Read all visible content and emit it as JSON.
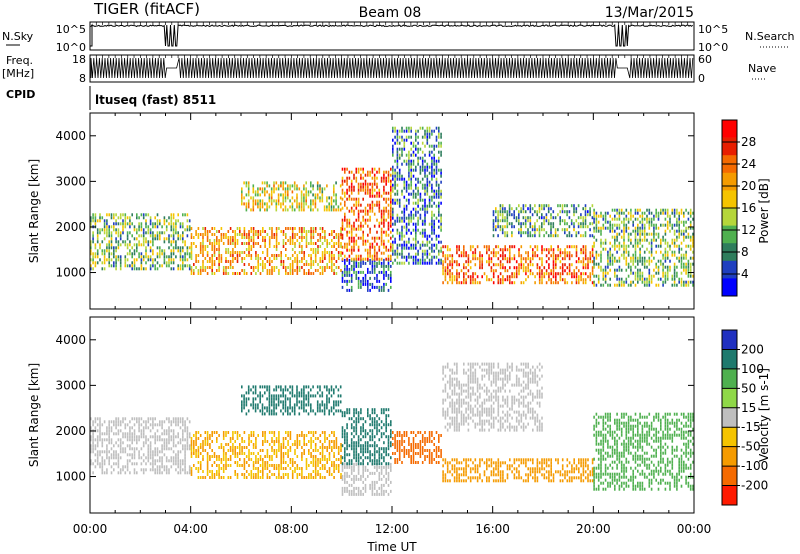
{
  "header": {
    "radar": "TIGER (fitACF)",
    "beam": "Beam 08",
    "date": "13/Mar/2015"
  },
  "strips": {
    "nsky_label": "N.Sky",
    "nsky_ticks": [
      "10^5",
      "10^0"
    ],
    "nsearch_label": "N.Search",
    "nsearch_ticks": [
      "10^5",
      "10^0"
    ],
    "freq_label": "Freq.",
    "freq_unit": "[MHz]",
    "freq_ticks": [
      "18",
      "8"
    ],
    "nave_label": "Nave",
    "nave_ticks": [
      "60",
      "0"
    ],
    "cpid_label": "CPID",
    "cpid_value": "ltuseq (fast) 8511"
  },
  "chart_data": [
    {
      "type": "heatmap",
      "panel": "power",
      "xlabel": "",
      "ylabel": "Slant Range [km]",
      "xlim": [
        0,
        24
      ],
      "ylim": [
        200,
        4500
      ],
      "y_ticks": [
        1000,
        2000,
        3000,
        4000
      ],
      "colorbar": {
        "label": "Power [dB]",
        "ticks": [
          4,
          8,
          12,
          16,
          20,
          24,
          28
        ],
        "range": [
          0,
          32
        ],
        "colors": [
          "#0000ff",
          "#1f3fbf",
          "#2e7d5c",
          "#4fb04f",
          "#b5d63a",
          "#f5c400",
          "#f59b00",
          "#f56a00",
          "#e81e00",
          "#ff0000"
        ]
      },
      "regions": [
        {
          "t": [
            0.0,
            4.0
          ],
          "r": [
            1100,
            2300
          ],
          "value": 12
        },
        {
          "t": [
            4.0,
            10.0
          ],
          "r": [
            1000,
            2000
          ],
          "value": 20
        },
        {
          "t": [
            6.0,
            10.0
          ],
          "r": [
            2400,
            3000
          ],
          "value": 16
        },
        {
          "t": [
            10.0,
            12.0
          ],
          "r": [
            600,
            1300
          ],
          "value": 6
        },
        {
          "t": [
            10.0,
            12.0
          ],
          "r": [
            1300,
            3300
          ],
          "value": 24
        },
        {
          "t": [
            12.0,
            14.0
          ],
          "r": [
            1200,
            4200
          ],
          "value": 8
        },
        {
          "t": [
            14.0,
            20.0
          ],
          "r": [
            800,
            1600
          ],
          "value": 24
        },
        {
          "t": [
            16.0,
            20.0
          ],
          "r": [
            1800,
            2500
          ],
          "value": 10
        },
        {
          "t": [
            20.0,
            24.0
          ],
          "r": [
            700,
            2400
          ],
          "value": 12
        }
      ]
    },
    {
      "type": "heatmap",
      "panel": "velocity",
      "xlabel": "Time UT",
      "ylabel": "Slant Range [km]",
      "xlim": [
        0,
        24
      ],
      "ylim": [
        200,
        4500
      ],
      "x_ticks": [
        "00:00",
        "04:00",
        "08:00",
        "12:00",
        "16:00",
        "20:00",
        "00:00"
      ],
      "y_ticks": [
        1000,
        2000,
        3000,
        4000
      ],
      "colorbar": {
        "label": "Velocity [m s-1]",
        "ticks": [
          200,
          100,
          50,
          15,
          -15,
          -50,
          -100,
          -200
        ],
        "colors": [
          "#2030c0",
          "#1f7a6e",
          "#4fb04f",
          "#8fd848",
          "#bfbfbf",
          "#f5c400",
          "#f59b00",
          "#f56a00",
          "#ff1a00"
        ]
      },
      "regions": [
        {
          "t": [
            0.0,
            4.0
          ],
          "r": [
            1100,
            2300
          ],
          "value": 0
        },
        {
          "t": [
            4.0,
            10.0
          ],
          "r": [
            1000,
            2000
          ],
          "value": -50
        },
        {
          "t": [
            6.0,
            10.0
          ],
          "r": [
            2400,
            3000
          ],
          "value": 150
        },
        {
          "t": [
            10.0,
            12.0
          ],
          "r": [
            600,
            1300
          ],
          "value": 0
        },
        {
          "t": [
            10.0,
            12.0
          ],
          "r": [
            1300,
            2500
          ],
          "value": 150
        },
        {
          "t": [
            12.0,
            14.0
          ],
          "r": [
            1300,
            2000
          ],
          "value": -150
        },
        {
          "t": [
            14.0,
            20.0
          ],
          "r": [
            900,
            1400
          ],
          "value": -80
        },
        {
          "t": [
            14.0,
            18.0
          ],
          "r": [
            2000,
            3500
          ],
          "value": 0
        },
        {
          "t": [
            20.0,
            24.0
          ],
          "r": [
            700,
            2400
          ],
          "value": 60
        }
      ]
    }
  ]
}
